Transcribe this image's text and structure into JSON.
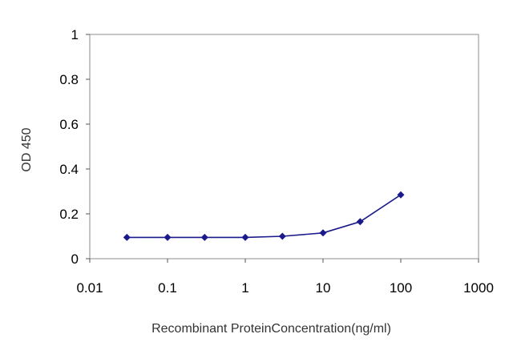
{
  "chart_data": {
    "type": "line",
    "title": "",
    "xlabel": "Recombinant ProteinConcentration(ng/ml)",
    "ylabel": "OD 450",
    "xscale": "log",
    "xlim": [
      0.01,
      1000
    ],
    "ylim": [
      0,
      1
    ],
    "xticks": [
      "0.01",
      "0.1",
      "1",
      "10",
      "100",
      "1000"
    ],
    "yticks": [
      "0",
      "0.2",
      "0.4",
      "0.6",
      "0.8",
      "1"
    ],
    "grid": "horizontal",
    "legend": "none",
    "series": [
      {
        "color": "#1a1a8c",
        "marker": "diamond",
        "x": [
          0.03,
          0.1,
          0.3,
          1,
          3,
          10,
          30,
          100
        ],
        "y": [
          0.095,
          0.095,
          0.095,
          0.095,
          0.1,
          0.115,
          0.165,
          0.285
        ]
      }
    ],
    "plot_background": "#ffffff",
    "grid_color": "#b3b3b3"
  }
}
